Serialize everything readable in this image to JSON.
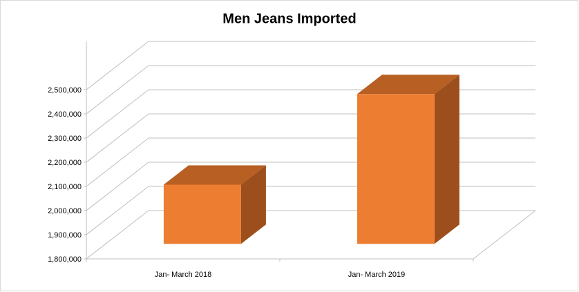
{
  "chart_data": {
    "type": "bar3d",
    "title": "Men Jeans Imported",
    "categories": [
      "Jan- March 2018",
      "Jan- March 2019"
    ],
    "values": [
      2045000,
      2420000
    ],
    "color": "#ed7d31",
    "ylim": [
      1800000,
      2500000
    ],
    "yticks": [
      {
        "value": 1800000,
        "label": "1,800,000"
      },
      {
        "value": 1900000,
        "label": "1,900,000"
      },
      {
        "value": 2000000,
        "label": "2,000,000"
      },
      {
        "value": 2100000,
        "label": "2,100,000"
      },
      {
        "value": 2200000,
        "label": "2,200,000"
      },
      {
        "value": 2300000,
        "label": "2,300,000"
      },
      {
        "value": 2400000,
        "label": "2,400,000"
      },
      {
        "value": 2500000,
        "label": "2,500,000"
      }
    ],
    "grid": true
  }
}
